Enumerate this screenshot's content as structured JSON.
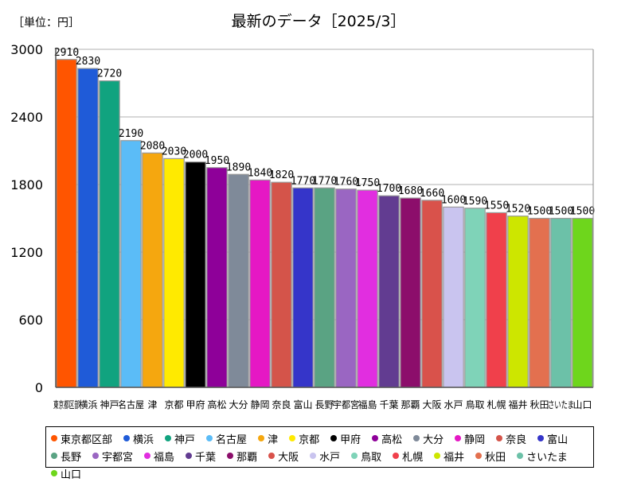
{
  "unit_label": "［単位：円］",
  "chart_data": {
    "type": "bar",
    "title": "最新のデータ［2025/3］",
    "xlabel": "",
    "ylabel": "",
    "ylim": [
      0,
      3000
    ],
    "yticks": [
      0,
      600,
      1200,
      1800,
      2400,
      3000
    ],
    "grid": true,
    "legend_position": "bottom",
    "categories": [
      "東京都区部",
      "横浜",
      "神戸",
      "名古屋",
      "津",
      "京都",
      "甲府",
      "高松",
      "大分",
      "静岡",
      "奈良",
      "富山",
      "長野",
      "宇都宮",
      "福島",
      "千葉",
      "那覇",
      "大阪",
      "水戸",
      "鳥取",
      "札幌",
      "福井",
      "秋田",
      "さいたま",
      "山口"
    ],
    "values": [
      2910,
      2830,
      2720,
      2190,
      2080,
      2030,
      2000,
      1950,
      1890,
      1840,
      1820,
      1770,
      1770,
      1760,
      1750,
      1700,
      1680,
      1660,
      1600,
      1590,
      1550,
      1520,
      1500,
      1500,
      1500
    ],
    "value_labels": [
      "2910",
      "2830",
      "2720",
      "2190",
      "2080",
      "2030",
      "2000",
      "1950",
      "1890",
      "1840",
      "1820",
      "1770",
      "1770",
      "1760",
      "1750",
      "1700",
      "1680",
      "1660",
      "1600",
      "1590",
      "1550",
      "1520",
      "1500",
      "1500",
      "1500"
    ],
    "colors": [
      "#ff5500",
      "#1f5bd8",
      "#11a37f",
      "#5bbcf7",
      "#f5a70f",
      "#ffea00",
      "#000000",
      "#8e0099",
      "#7f8a99",
      "#e518c4",
      "#d4544a",
      "#3535c9",
      "#5aa383",
      "#9a66c2",
      "#e12ee0",
      "#623c91",
      "#8c0e6b",
      "#d9524b",
      "#c9c4ef",
      "#7fd3b8",
      "#f0404b",
      "#cde600",
      "#e3704f",
      "#6cc1a8",
      "#6ed61c"
    ]
  }
}
